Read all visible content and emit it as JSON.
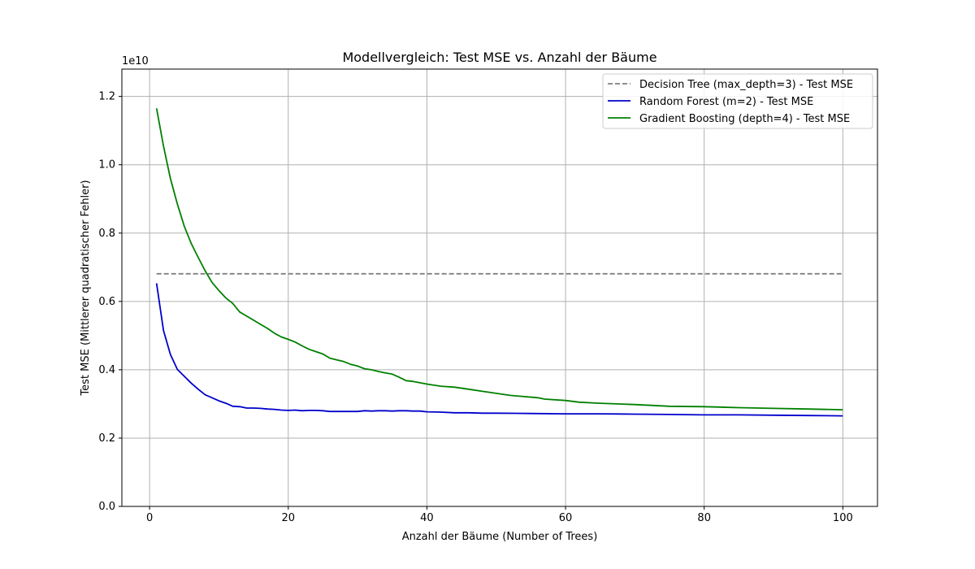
{
  "chart_data": {
    "type": "line",
    "title": "Modellvergleich: Test MSE vs. Anzahl der Bäume",
    "xlabel": "Anzahl der Bäume (Number of Trees)",
    "ylabel": "Test MSE (Mittlerer quadratischer Fehler)",
    "y_offset_label": "1e10",
    "xlim": [
      -4,
      105
    ],
    "ylim": [
      0,
      1.28
    ],
    "x_ticks": [
      0,
      20,
      40,
      60,
      80,
      100
    ],
    "x_tick_labels": [
      "0",
      "20",
      "40",
      "60",
      "80",
      "100"
    ],
    "y_ticks": [
      0,
      0.2,
      0.4,
      0.6,
      0.8,
      1.0,
      1.2
    ],
    "y_tick_labels": [
      "0.0",
      "0.2",
      "0.4",
      "0.6",
      "0.8",
      "1.0",
      "1.2"
    ],
    "grid": true,
    "legend_position": "top-right",
    "series": [
      {
        "name": "Decision Tree (max_depth=3) - Test MSE",
        "color": "#808080",
        "dash": "dashed",
        "x": [
          1,
          100
        ],
        "values": [
          0.681,
          0.681
        ]
      },
      {
        "name": "Random Forest (m=2) - Test MSE",
        "color": "#0000cc",
        "dash": "solid",
        "x": [
          1,
          2,
          3,
          4,
          5,
          6,
          7,
          8,
          9,
          10,
          11,
          12,
          13,
          14,
          15,
          16,
          17,
          18,
          19,
          20,
          21,
          22,
          23,
          24,
          25,
          26,
          27,
          28,
          29,
          30,
          31,
          32,
          33,
          34,
          35,
          36,
          37,
          38,
          39,
          40,
          42,
          44,
          46,
          48,
          50,
          55,
          60,
          65,
          70,
          75,
          80,
          85,
          90,
          95,
          100
        ],
        "values": [
          0.653,
          0.515,
          0.445,
          0.401,
          0.381,
          0.361,
          0.343,
          0.327,
          0.318,
          0.309,
          0.302,
          0.293,
          0.292,
          0.288,
          0.288,
          0.287,
          0.285,
          0.284,
          0.282,
          0.281,
          0.282,
          0.28,
          0.281,
          0.281,
          0.28,
          0.278,
          0.278,
          0.278,
          0.278,
          0.278,
          0.28,
          0.279,
          0.28,
          0.28,
          0.279,
          0.28,
          0.28,
          0.279,
          0.279,
          0.277,
          0.276,
          0.274,
          0.274,
          0.273,
          0.273,
          0.272,
          0.271,
          0.271,
          0.27,
          0.269,
          0.268,
          0.268,
          0.267,
          0.266,
          0.265
        ]
      },
      {
        "name": "Gradient Boosting (depth=4) - Test MSE",
        "color": "#008000",
        "dash": "solid",
        "x": [
          1,
          2,
          3,
          4,
          5,
          6,
          7,
          8,
          9,
          10,
          11,
          12,
          13,
          14,
          15,
          16,
          17,
          18,
          19,
          20,
          21,
          22,
          23,
          24,
          25,
          26,
          27,
          28,
          29,
          30,
          31,
          32,
          33,
          34,
          35,
          36,
          37,
          38,
          40,
          42,
          44,
          46,
          48,
          50,
          52,
          56,
          57,
          60,
          62,
          65,
          70,
          75,
          80,
          85,
          90,
          95,
          100
        ],
        "values": [
          1.165,
          1.055,
          0.96,
          0.885,
          0.82,
          0.77,
          0.729,
          0.69,
          0.656,
          0.632,
          0.61,
          0.594,
          0.569,
          0.557,
          0.545,
          0.533,
          0.521,
          0.507,
          0.496,
          0.489,
          0.481,
          0.47,
          0.46,
          0.453,
          0.446,
          0.434,
          0.429,
          0.424,
          0.416,
          0.411,
          0.403,
          0.4,
          0.395,
          0.391,
          0.387,
          0.378,
          0.368,
          0.366,
          0.358,
          0.352,
          0.349,
          0.343,
          0.337,
          0.331,
          0.325,
          0.318,
          0.314,
          0.31,
          0.305,
          0.302,
          0.298,
          0.293,
          0.292,
          0.289,
          0.287,
          0.285,
          0.283
        ]
      }
    ]
  }
}
